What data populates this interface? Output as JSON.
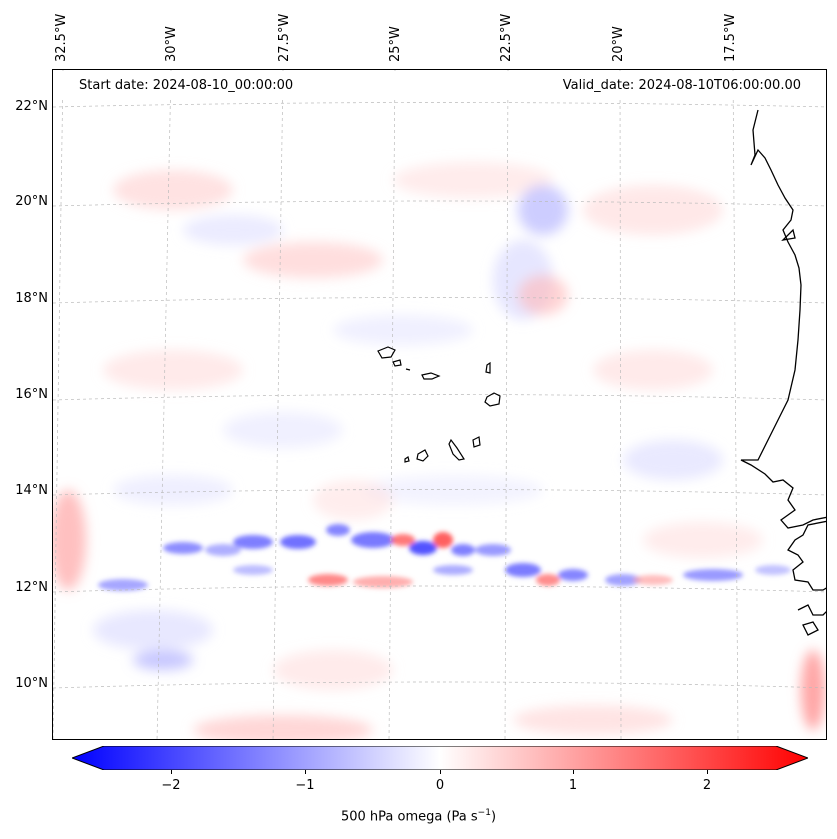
{
  "header": {
    "start_date": "Start date: 2024-08-10_00:00:00",
    "valid_date": "Valid_date: 2024-08-10T06:00:00.00"
  },
  "axes": {
    "longitude_labels": [
      "32.5°W",
      "30°W",
      "27.5°W",
      "25°W",
      "22.5°W",
      "20°W",
      "17.5°W"
    ],
    "latitude_labels": [
      "22°N",
      "20°N",
      "18°N",
      "16°N",
      "14°N",
      "12°N",
      "10°N"
    ]
  },
  "colorbar": {
    "label": "500 hPa omega (Pa s",
    "label_sup": "−1",
    "label_end": ")",
    "ticks": [
      "−2",
      "−1",
      "0",
      "1",
      "2"
    ],
    "range": [
      -2.7,
      2.7
    ],
    "extend": "both",
    "colors": {
      "negative": "#0000ff",
      "zero": "#ffffff",
      "positive": "#ff0000"
    }
  },
  "map": {
    "projection": "lambert-conformal",
    "extent_lon": [
      -33,
      -15
    ],
    "extent_lat": [
      9,
      22.7
    ],
    "gridlines": true,
    "coastline_color": "#000000",
    "features": [
      "Cape Verde islands",
      "West African coastline"
    ]
  }
}
